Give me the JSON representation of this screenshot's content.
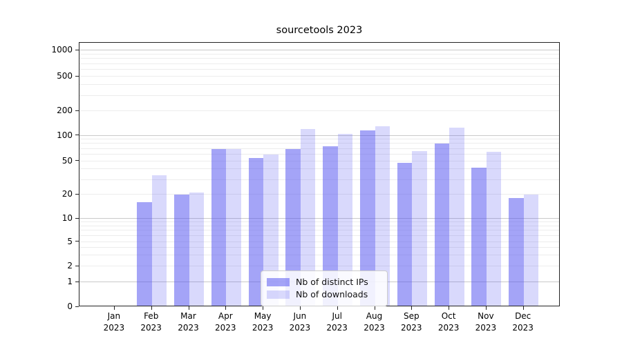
{
  "chart_data": {
    "type": "bar",
    "title": "sourcetools 2023",
    "categories": [
      "Jan 2023",
      "Feb 2023",
      "Mar 2023",
      "Apr 2023",
      "May 2023",
      "Jun 2023",
      "Jul 2023",
      "Aug 2023",
      "Sep 2023",
      "Oct 2023",
      "Nov 2023",
      "Dec 2023"
    ],
    "series": [
      {
        "name": "Nb of distinct IPs",
        "color": "rgba(80,80,240,0.52)",
        "color_hex_on_white": "#a4a4f7",
        "values": [
          0,
          16,
          20,
          70,
          54,
          70,
          75,
          115,
          48,
          81,
          42,
          18
        ]
      },
      {
        "name": "Nb of downloads",
        "color": "rgba(80,80,240,0.22)",
        "color_hex_on_white": "#d9d9f9",
        "values": [
          0,
          34,
          21,
          70,
          60,
          120,
          104,
          130,
          66,
          124,
          64,
          20
        ]
      }
    ],
    "yticks": [
      0,
      1,
      2,
      5,
      10,
      20,
      50,
      100,
      200,
      500,
      1000
    ],
    "ylim": [
      0,
      1400
    ],
    "scale": "symlog-like (linear 0-1, logarithmic above)",
    "grid": "horizontal, major lines at 1/10/100/1000, faint minor log lines",
    "legend_position": "lower center",
    "colors": {
      "major_grid": "#c9c9c9",
      "minor_grid": "#ececec",
      "axis": "#222222",
      "text": "#000000"
    }
  }
}
